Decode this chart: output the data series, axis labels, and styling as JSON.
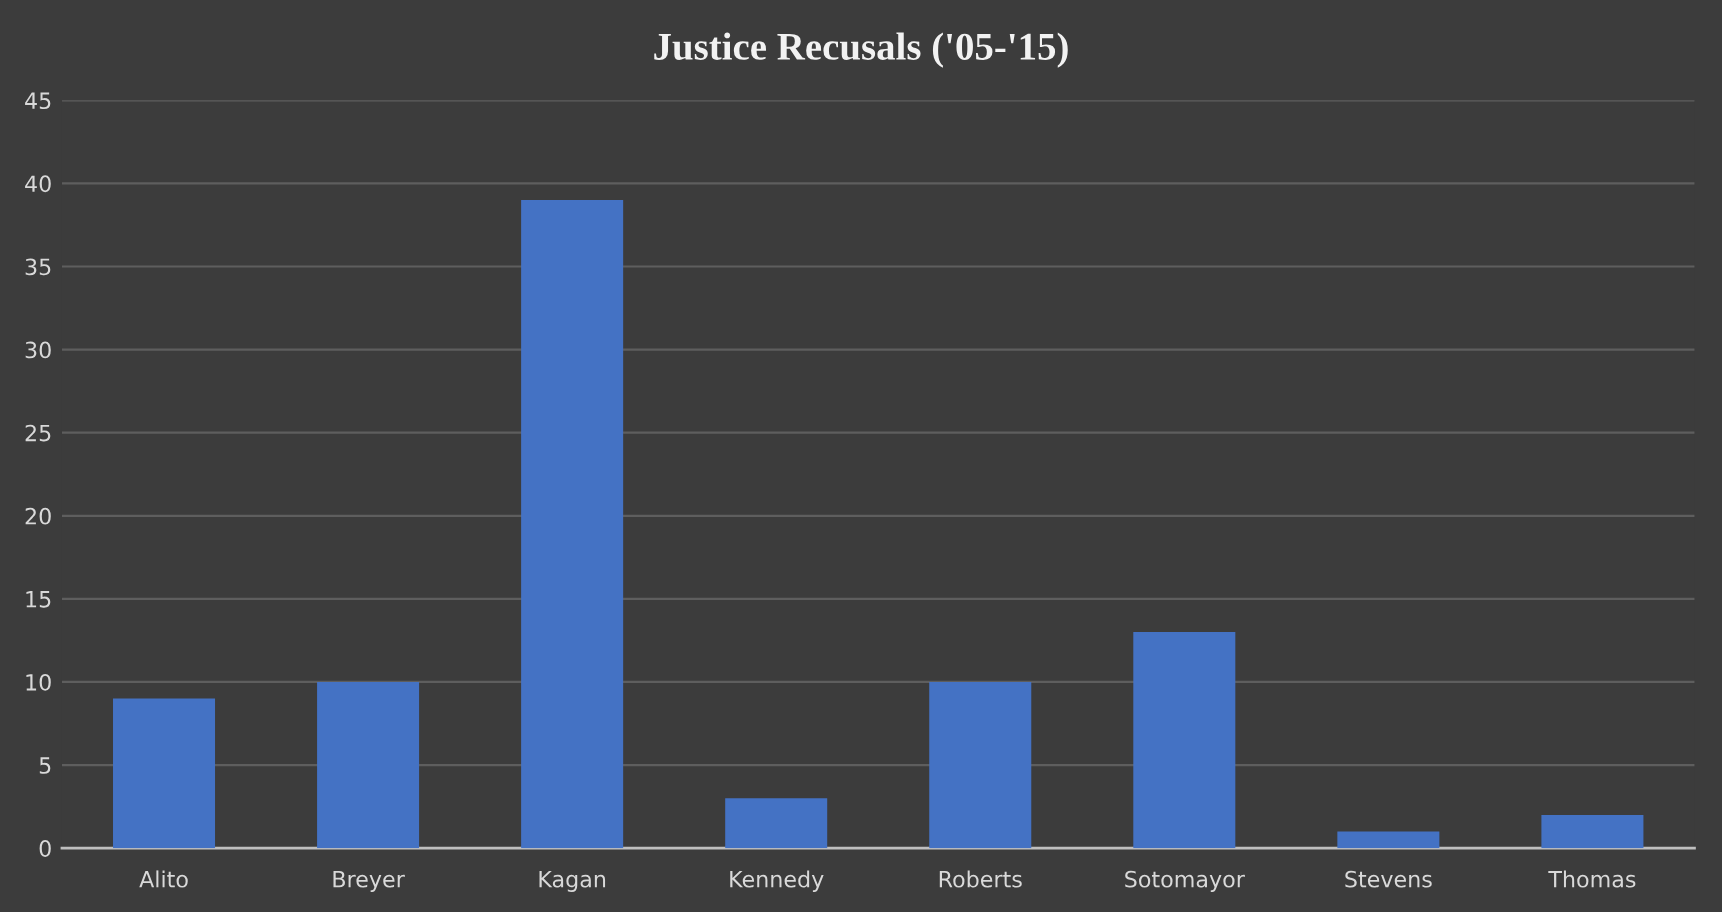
{
  "chart_data": {
    "type": "bar",
    "title": "Justice Recusals ('05-'15)",
    "categories": [
      "Alito",
      "Breyer",
      "Kagan",
      "Kennedy",
      "Roberts",
      "Sotomayor",
      "Stevens",
      "Thomas"
    ],
    "values": [
      9,
      10,
      39,
      3,
      10,
      13,
      1,
      2
    ],
    "color": "#4472c4",
    "ylim": [
      0,
      45
    ],
    "yticks": [
      0,
      5,
      10,
      15,
      20,
      25,
      30,
      35,
      40,
      45
    ],
    "grid": "y"
  }
}
